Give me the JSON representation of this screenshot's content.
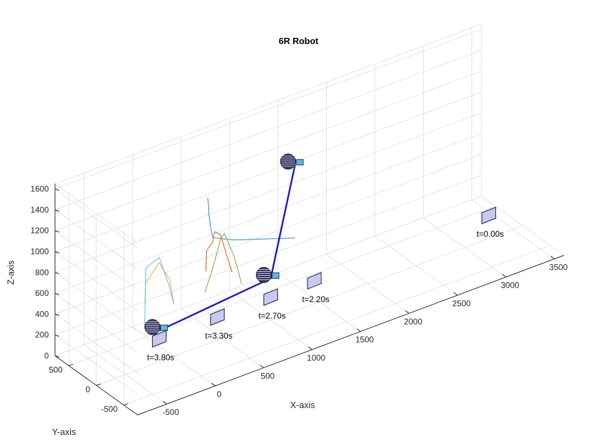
{
  "chart_data": {
    "type": "line",
    "title": "6R Robot",
    "xlabel": "X-axis",
    "ylabel": "Y-axis",
    "zlabel": "Z-axis",
    "xlim": [
      -800,
      3600
    ],
    "ylim": [
      -750,
      750
    ],
    "zlim": [
      0,
      1650
    ],
    "xticks": [
      "-500",
      "0",
      "500",
      "1000",
      "1500",
      "2000",
      "2500",
      "3000",
      "3500"
    ],
    "yticks": [
      "-500",
      "0",
      "500"
    ],
    "zticks": [
      "0",
      "200",
      "400",
      "600",
      "800",
      "1000",
      "1200",
      "1400",
      "1600"
    ],
    "grid": true,
    "annotations": [
      {
        "text": "t=0.00s",
        "x": 3250,
        "y": 0,
        "z": 220
      },
      {
        "text": "t=2.20s",
        "x": 1450,
        "y": 0,
        "z": 220
      },
      {
        "text": "t=2.70s",
        "x": 1000,
        "y": 0,
        "z": 220
      },
      {
        "text": "t=3.30s",
        "x": 450,
        "y": 0,
        "z": 220
      },
      {
        "text": "t=3.80s",
        "x": -150,
        "y": 0,
        "z": 220
      }
    ],
    "series": [
      {
        "color": "#2a86c8",
        "x": [
          350,
          360,
          360,
          380,
          400,
          620,
          1250
        ],
        "y": [
          0,
          0,
          0,
          0,
          0,
          0,
          0
        ],
        "z": [
          1400,
          1300,
          1250,
          1100,
          1000,
          900,
          700
        ]
      },
      {
        "color": "#d95319",
        "x": [
          330,
          340,
          400,
          420,
          480,
          540,
          600
        ],
        "y": [
          0,
          0,
          0,
          0,
          0,
          0,
          0
        ],
        "z": [
          700,
          900,
          950,
          1050,
          1000,
          800,
          600
        ]
      },
      {
        "color": "#edb120",
        "x": [
          -300,
          -290,
          -200,
          -150,
          -100,
          -40,
          0
        ],
        "y": [
          0,
          0,
          0,
          0,
          0,
          0,
          0
        ],
        "z": [
          600,
          800,
          900,
          950,
          850,
          750,
          500
        ]
      },
      {
        "color": "#77ac30",
        "x": [
          320,
          400,
          480,
          520,
          560,
          620,
          700
        ],
        "y": [
          0,
          0,
          0,
          0,
          0,
          0,
          0
        ],
        "z": [
          500,
          700,
          950,
          1000,
          900,
          750,
          450
        ]
      },
      {
        "color": "#4dbeee",
        "x": [
          -300,
          -290,
          -150,
          -100,
          -50,
          0
        ],
        "y": [
          0,
          0,
          0,
          0,
          0,
          0
        ],
        "z": [
          400,
          950,
          1000,
          850,
          700,
          500
        ]
      }
    ],
    "robot_links": [
      {
        "color": "#1f1fbf",
        "x": [
          -150,
          1000,
          1250
        ],
        "y": [
          0,
          0,
          0
        ],
        "z": [
          300,
          400,
          1400
        ]
      }
    ]
  }
}
